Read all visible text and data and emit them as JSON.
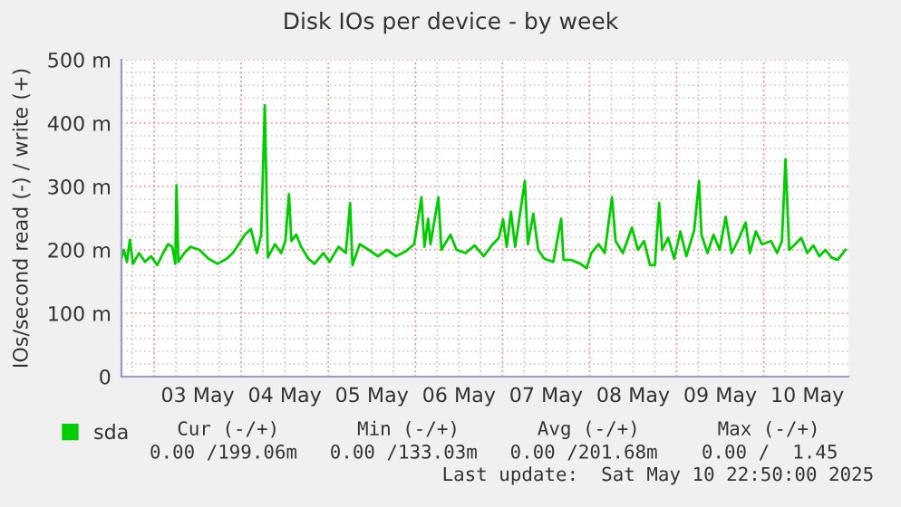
{
  "chart_data": {
    "type": "line",
    "title": "Disk IOs per device - by week",
    "ylabel": "IOs/second read (-) / write (+)",
    "x": [
      "2025-05-02T15:00",
      "2025-05-02T15:40",
      "2025-05-02T16:30",
      "2025-05-02T17:20",
      "2025-05-02T18:10",
      "2025-05-02T19:50",
      "2025-05-02T21:30",
      "2025-05-02T23:10",
      "2025-05-03T00:50",
      "2025-05-03T02:30",
      "2025-05-03T03:50",
      "2025-05-03T05:00",
      "2025-05-03T05:50",
      "2025-05-03T06:10",
      "2025-05-03T06:40",
      "2025-05-03T08:20",
      "2025-05-03T10:00",
      "2025-05-03T12:30",
      "2025-05-03T15:00",
      "2025-05-03T17:30",
      "2025-05-03T20:00",
      "2025-05-03T21:40",
      "2025-05-03T23:20",
      "2025-05-04T01:00",
      "2025-05-04T02:40",
      "2025-05-04T04:20",
      "2025-05-04T05:30",
      "2025-05-04T06:30",
      "2025-05-04T07:20",
      "2025-05-04T09:20",
      "2025-05-04T11:00",
      "2025-05-04T12:10",
      "2025-05-04T13:10",
      "2025-05-04T13:50",
      "2025-05-04T15:10",
      "2025-05-04T16:30",
      "2025-05-04T18:30",
      "2025-05-04T20:10",
      "2025-05-04T22:40",
      "2025-05-05T00:20",
      "2025-05-05T02:50",
      "2025-05-05T04:50",
      "2025-05-05T06:00",
      "2025-05-05T06:40",
      "2025-05-05T08:40",
      "2025-05-05T11:10",
      "2025-05-05T13:40",
      "2025-05-05T16:10",
      "2025-05-05T18:40",
      "2025-05-05T21:10",
      "2025-05-05T23:40",
      "2025-05-06T01:40",
      "2025-05-06T02:30",
      "2025-05-06T03:30",
      "2025-05-06T04:10",
      "2025-05-06T06:20",
      "2025-05-06T07:10",
      "2025-05-06T09:40",
      "2025-05-06T11:20",
      "2025-05-06T13:50",
      "2025-05-06T16:20",
      "2025-05-06T18:50",
      "2025-05-06T21:20",
      "2025-05-06T23:00",
      "2025-05-07T00:10",
      "2025-05-07T01:10",
      "2025-05-07T02:20",
      "2025-05-07T03:30",
      "2025-05-07T06:10",
      "2025-05-07T07:00",
      "2025-05-07T08:30",
      "2025-05-07T09:50",
      "2025-05-07T11:30",
      "2025-05-07T14:00",
      "2025-05-07T16:10",
      "2025-05-07T16:50",
      "2025-05-07T19:00",
      "2025-05-07T21:30",
      "2025-05-07T23:10",
      "2025-05-08T00:30",
      "2025-05-08T02:30",
      "2025-05-08T04:10",
      "2025-05-08T06:10",
      "2025-05-08T07:10",
      "2025-05-08T09:10",
      "2025-05-08T11:40",
      "2025-05-08T13:20",
      "2025-05-08T15:00",
      "2025-05-08T16:40",
      "2025-05-08T18:00",
      "2025-05-08T19:10",
      "2025-05-08T20:00",
      "2025-05-08T21:40",
      "2025-05-08T23:20",
      "2025-05-09T01:00",
      "2025-05-09T02:40",
      "2025-05-09T04:50",
      "2025-05-09T06:10",
      "2025-05-09T06:50",
      "2025-05-09T08:30",
      "2025-05-09T10:10",
      "2025-05-09T11:50",
      "2025-05-09T13:30",
      "2025-05-09T15:10",
      "2025-05-09T16:50",
      "2025-05-09T19:00",
      "2025-05-09T20:10",
      "2025-05-09T21:50",
      "2025-05-09T23:30",
      "2025-05-10T02:00",
      "2025-05-10T03:40",
      "2025-05-10T05:00",
      "2025-05-10T06:00",
      "2025-05-10T07:00",
      "2025-05-10T08:40",
      "2025-05-10T10:20",
      "2025-05-10T12:00",
      "2025-05-10T13:40",
      "2025-05-10T15:20",
      "2025-05-10T17:00",
      "2025-05-10T18:40",
      "2025-05-10T20:20",
      "2025-05-10T22:30"
    ],
    "series": [
      {
        "name": "sda",
        "color": "#00cc00",
        "values": [
          186,
          200,
          181,
          216,
          178,
          195,
          181,
          190,
          176,
          195,
          209,
          205,
          178,
          302,
          181,
          195,
          205,
          200,
          186,
          178,
          186,
          195,
          209,
          224,
          233,
          195,
          224,
          428,
          188,
          209,
          195,
          214,
          288,
          214,
          224,
          205,
          186,
          178,
          195,
          181,
          205,
          195,
          274,
          176,
          209,
          200,
          190,
          200,
          190,
          197,
          209,
          283,
          205,
          249,
          209,
          283,
          200,
          224,
          200,
          195,
          207,
          190,
          209,
          219,
          248,
          205,
          260,
          205,
          309,
          209,
          257,
          200,
          186,
          181,
          249,
          184,
          184,
          178,
          171,
          195,
          209,
          195,
          283,
          214,
          195,
          235,
          200,
          214,
          176,
          176,
          274,
          200,
          219,
          186,
          229,
          190,
          231,
          309,
          224,
          195,
          224,
          200,
          252,
          195,
          214,
          243,
          195,
          229,
          209,
          214,
          195,
          214,
          343,
          200,
          209,
          219,
          195,
          207,
          190,
          200,
          188,
          184,
          200
        ]
      }
    ],
    "xlim": [
      "2025-05-02T15:00",
      "2025-05-10T23:20"
    ],
    "xticks": [
      {
        "value": "2025-05-03T00:00",
        "label": null
      },
      {
        "value": "2025-05-03T12:00",
        "label": "03 May"
      },
      {
        "value": "2025-05-04T00:00",
        "label": null
      },
      {
        "value": "2025-05-04T12:00",
        "label": "04 May"
      },
      {
        "value": "2025-05-05T00:00",
        "label": null
      },
      {
        "value": "2025-05-05T12:00",
        "label": "05 May"
      },
      {
        "value": "2025-05-06T00:00",
        "label": null
      },
      {
        "value": "2025-05-06T12:00",
        "label": "06 May"
      },
      {
        "value": "2025-05-07T00:00",
        "label": null
      },
      {
        "value": "2025-05-07T12:00",
        "label": "07 May"
      },
      {
        "value": "2025-05-08T00:00",
        "label": null
      },
      {
        "value": "2025-05-08T12:00",
        "label": "08 May"
      },
      {
        "value": "2025-05-09T00:00",
        "label": null
      },
      {
        "value": "2025-05-09T12:00",
        "label": "09 May"
      },
      {
        "value": "2025-05-10T00:00",
        "label": null
      },
      {
        "value": "2025-05-10T12:00",
        "label": "10 May"
      }
    ],
    "ylim": [
      0,
      500
    ],
    "yticks": [
      0,
      {
        "value": 100,
        "label": "100 m"
      },
      {
        "value": 200,
        "label": "200 m"
      },
      {
        "value": 300,
        "label": "300 m"
      },
      {
        "value": 400,
        "label": "400 m"
      },
      {
        "value": 500,
        "label": "500 m"
      }
    ],
    "grid": true,
    "legend": "bottom",
    "marker": "none",
    "line_style": "solid",
    "annotations": [
      "Cur (-/+)",
      "Min (-/+)",
      "Avg (-/+)",
      "Max (-/+)",
      "0.00 /199.06m",
      "0.00 /133.03m",
      "0.00 /201.68m",
      "0.00 /  1.45",
      "Last update:  Sat May 10 22:50:00 2025"
    ]
  }
}
